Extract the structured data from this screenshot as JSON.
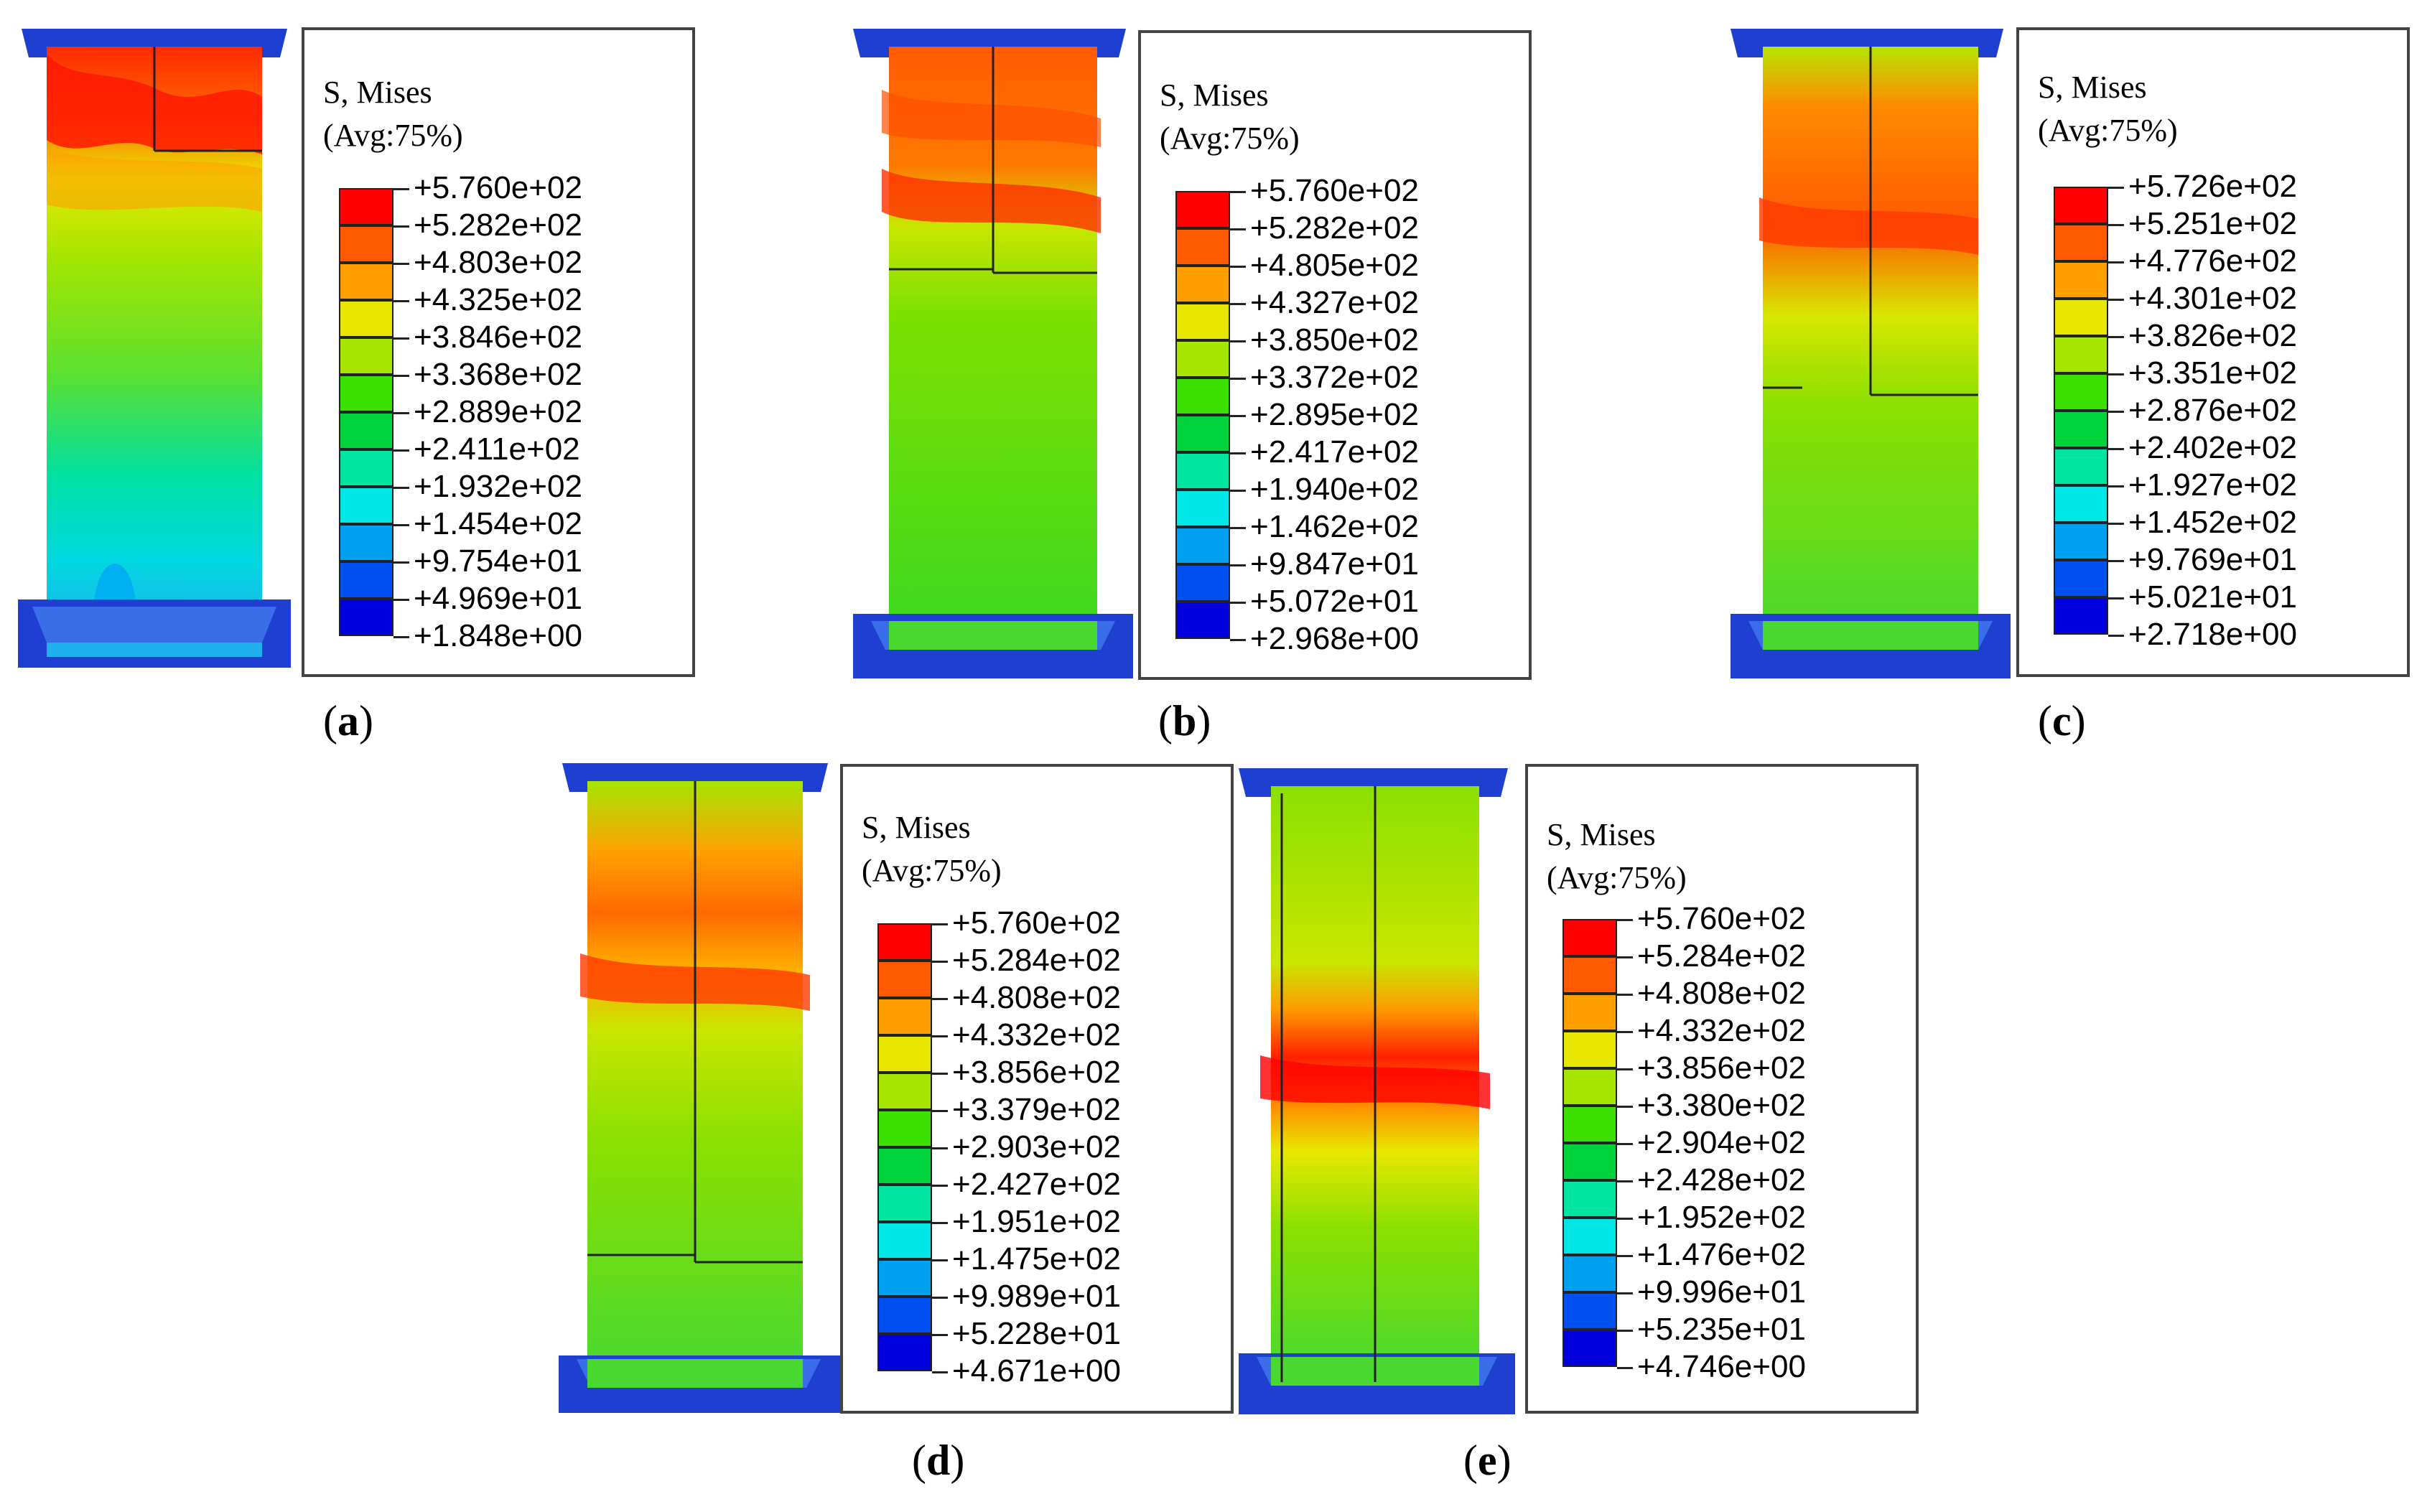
{
  "colors": {
    "scale": [
      "#ff0000",
      "#ff5a00",
      "#ffa000",
      "#e6e600",
      "#a6e600",
      "#3ce000",
      "#00d23c",
      "#00e6a0",
      "#00e6e6",
      "#00a0f0",
      "#0050f0",
      "#0000dc"
    ],
    "plate": "#1f3fd0",
    "plate_light": "#3a6ee8"
  },
  "panels": [
    {
      "id": "a",
      "caption_letter": "a",
      "legend_title_1": "S, Mises",
      "legend_title_2": "(Avg:75%)",
      "legend_values": [
        "+5.760e+02",
        "+5.282e+02",
        "+4.803e+02",
        "+4.325e+02",
        "+3.846e+02",
        "+3.368e+02",
        "+2.889e+02",
        "+2.411e+02",
        "+1.932e+02",
        "+1.454e+02",
        "+9.754e+01",
        "+4.969e+01",
        "+1.848e+00"
      ]
    },
    {
      "id": "b",
      "caption_letter": "b",
      "legend_title_1": "S, Mises",
      "legend_title_2": "(Avg:75%)",
      "legend_values": [
        "+5.760e+02",
        "+5.282e+02",
        "+4.805e+02",
        "+4.327e+02",
        "+3.850e+02",
        "+3.372e+02",
        "+2.895e+02",
        "+2.417e+02",
        "+1.940e+02",
        "+1.462e+02",
        "+9.847e+01",
        "+5.072e+01",
        "+2.968e+00"
      ]
    },
    {
      "id": "c",
      "caption_letter": "c",
      "legend_title_1": "S, Mises",
      "legend_title_2": "(Avg:75%)",
      "legend_values": [
        "+5.726e+02",
        "+5.251e+02",
        "+4.776e+02",
        "+4.301e+02",
        "+3.826e+02",
        "+3.351e+02",
        "+2.876e+02",
        "+2.402e+02",
        "+1.927e+02",
        "+1.452e+02",
        "+9.769e+01",
        "+5.021e+01",
        "+2.718e+00"
      ]
    },
    {
      "id": "d",
      "caption_letter": "d",
      "legend_title_1": "S, Mises",
      "legend_title_2": "(Avg:75%)",
      "legend_values": [
        "+5.760e+02",
        "+5.284e+02",
        "+4.808e+02",
        "+4.332e+02",
        "+3.856e+02",
        "+3.379e+02",
        "+2.903e+02",
        "+2.427e+02",
        "+1.951e+02",
        "+1.475e+02",
        "+9.989e+01",
        "+5.228e+01",
        "+4.671e+00"
      ]
    },
    {
      "id": "e",
      "caption_letter": "e",
      "legend_title_1": "S, Mises",
      "legend_title_2": "(Avg:75%)",
      "legend_values": [
        "+5.760e+02",
        "+5.284e+02",
        "+4.808e+02",
        "+4.332e+02",
        "+3.856e+02",
        "+3.380e+02",
        "+2.904e+02",
        "+2.428e+02",
        "+1.952e+02",
        "+1.476e+02",
        "+9.996e+01",
        "+5.235e+01",
        "+4.746e+00"
      ]
    }
  ]
}
